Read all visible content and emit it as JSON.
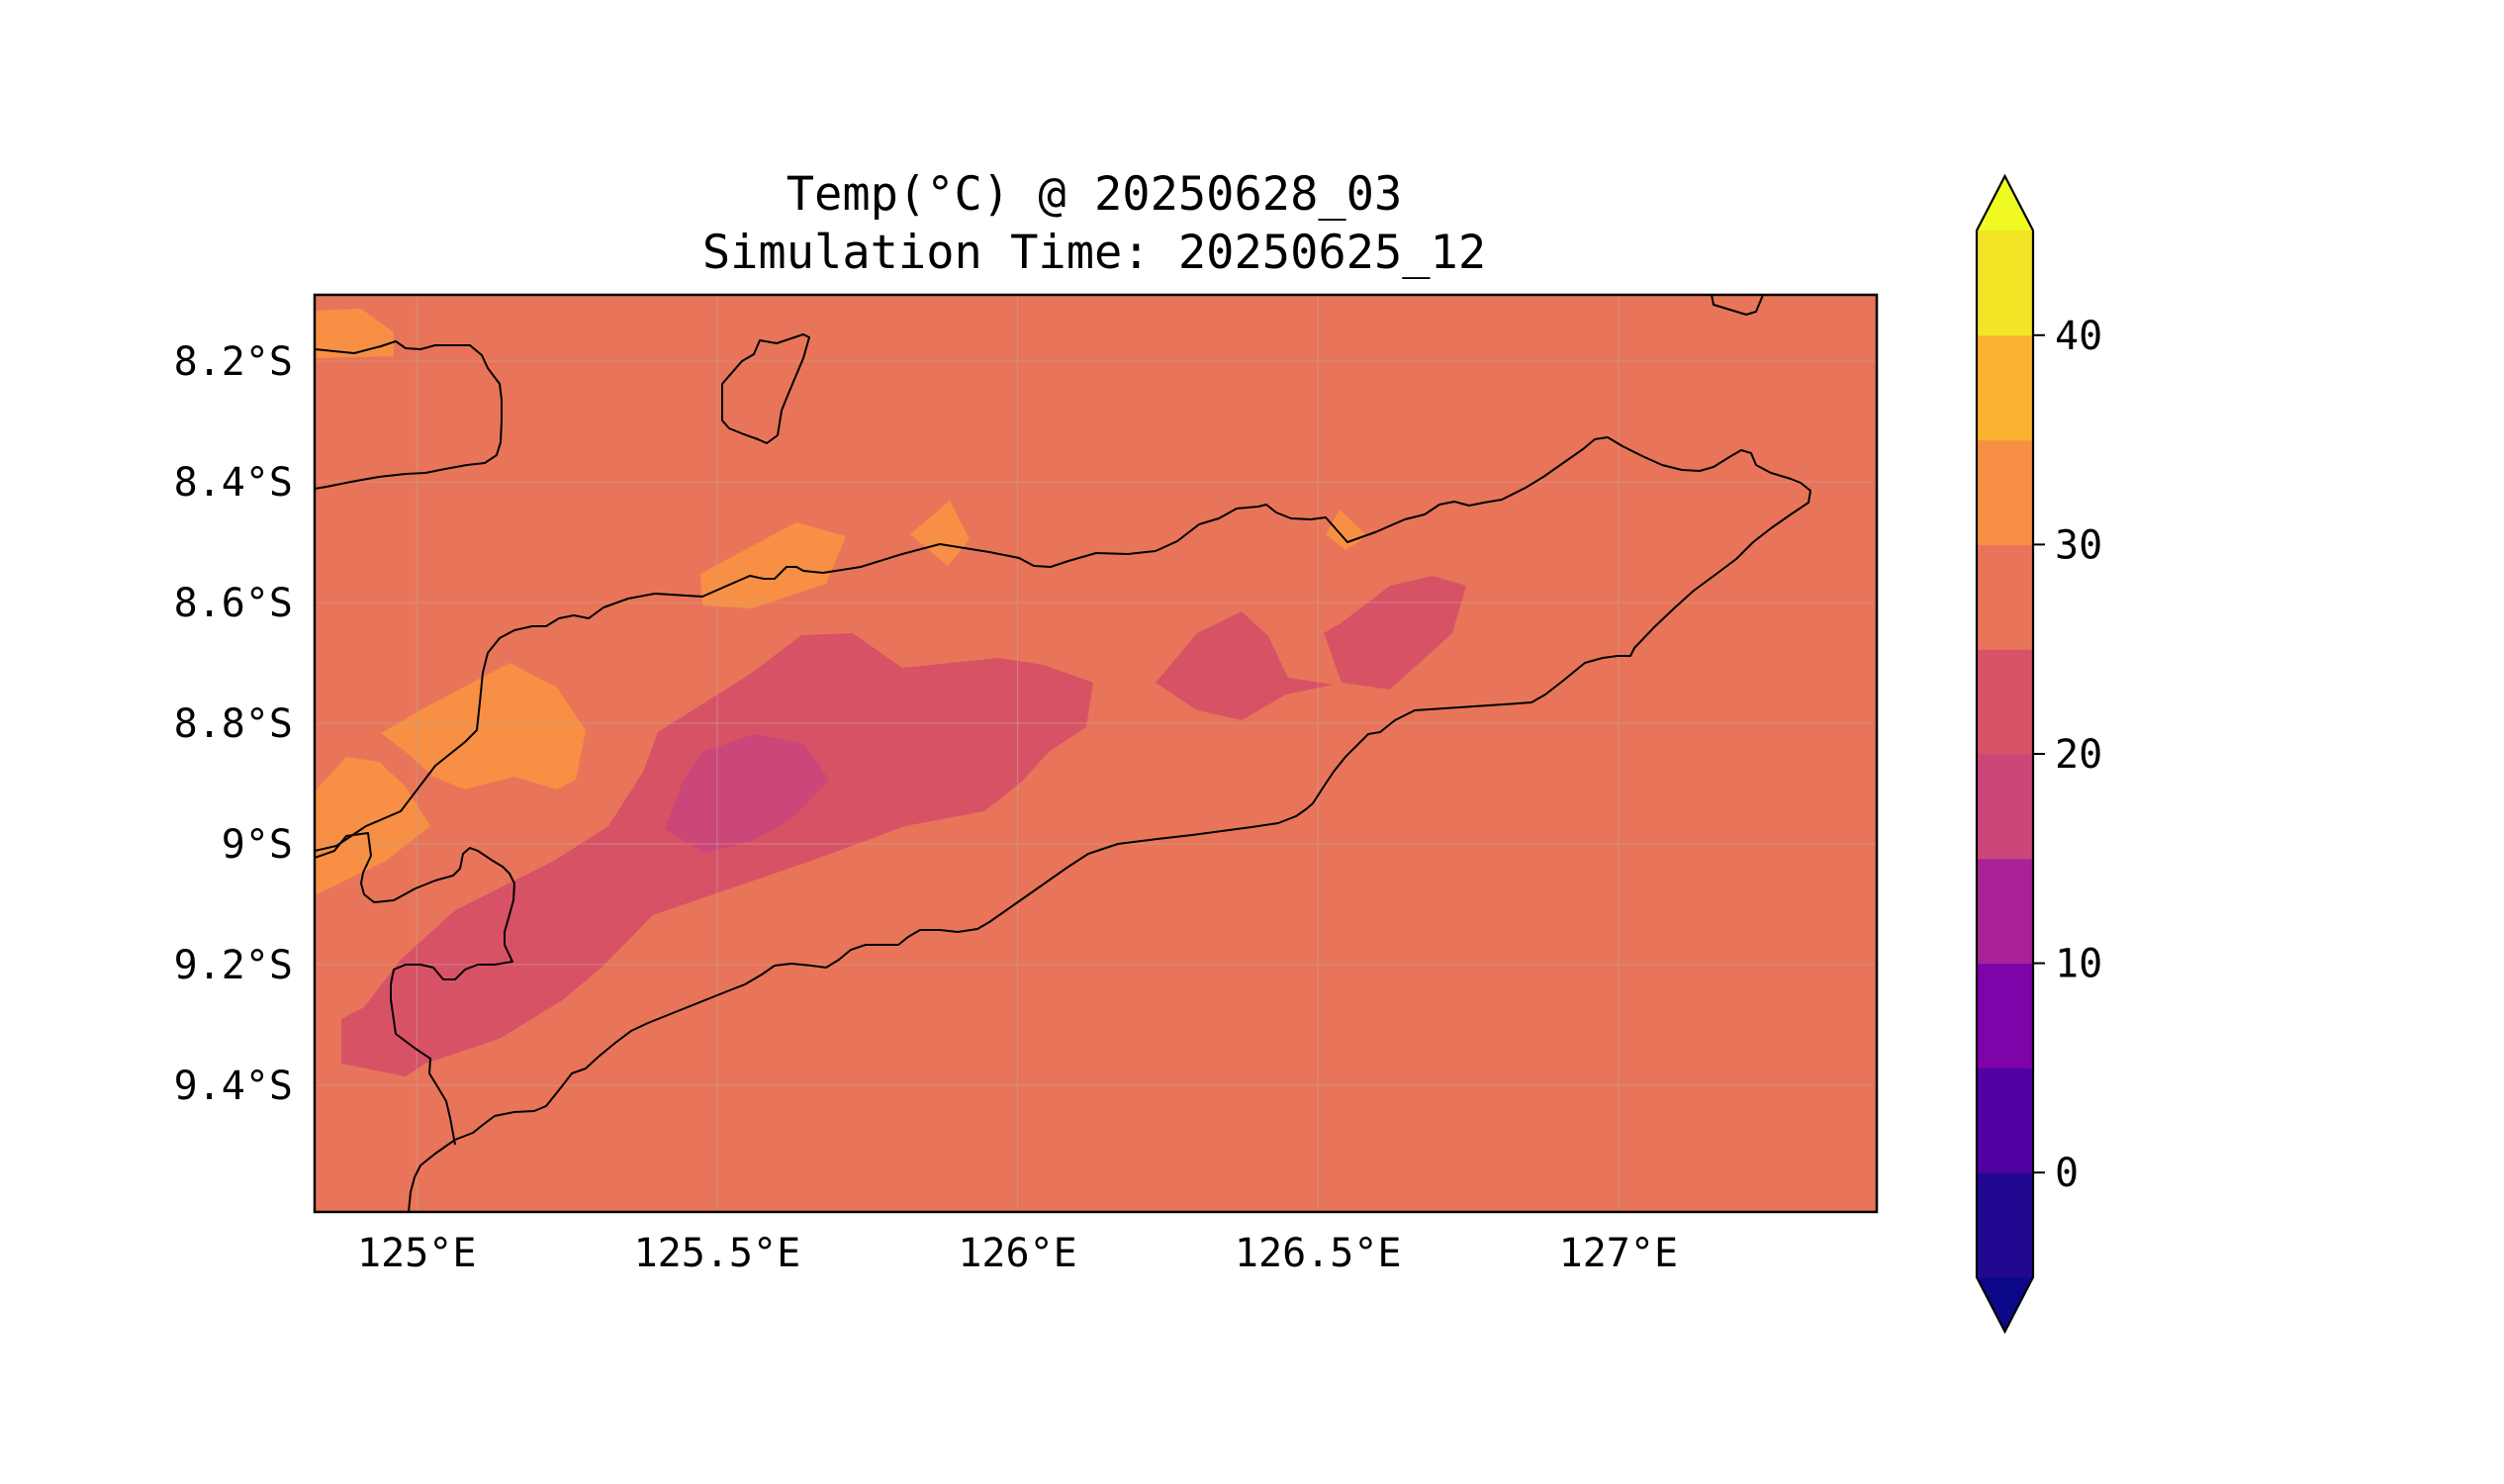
{
  "title": {
    "line1": "Temp(°C) @ 20250628_03",
    "line2": "Simulation Time: 20250625_12"
  },
  "map": {
    "region": "Timor island",
    "lon_range": [
      124.83,
      127.43
    ],
    "lat_range": [
      -9.61,
      -8.09
    ],
    "x_ticks": [
      {
        "lon": 125.0,
        "label": "125°E"
      },
      {
        "lon": 125.5,
        "label": "125.5°E"
      },
      {
        "lon": 126.0,
        "label": "126°E"
      },
      {
        "lon": 126.5,
        "label": "126.5°E"
      },
      {
        "lon": 127.0,
        "label": "127°E"
      }
    ],
    "y_ticks": [
      {
        "lat": -8.2,
        "label": "8.2°S"
      },
      {
        "lat": -8.4,
        "label": "8.4°S"
      },
      {
        "lat": -8.6,
        "label": "8.6°S"
      },
      {
        "lat": -8.8,
        "label": "8.8°S"
      },
      {
        "lat": -9.0,
        "label": "9°S"
      },
      {
        "lat": -9.2,
        "label": "9.2°S"
      },
      {
        "lat": -9.4,
        "label": "9.4°S"
      }
    ],
    "gridlines": true,
    "background_level_range": [
      25,
      30
    ]
  },
  "colorbar": {
    "levels": [
      -5,
      0,
      5,
      10,
      15,
      20,
      25,
      30,
      35,
      40,
      45
    ],
    "colors": [
      "#220891",
      "#5002a2",
      "#7e03a8",
      "#a82296",
      "#cb4679",
      "#d85266",
      "#e8755a",
      "#f79044",
      "#fdb130",
      "#f3e426"
    ],
    "under_color": "#0d0887",
    "over_color": "#f0f921",
    "extend": "both",
    "tick_values": [
      0,
      10,
      20,
      30,
      40
    ],
    "tick_labels": [
      "0",
      "10",
      "20",
      "30",
      "40"
    ]
  }
}
